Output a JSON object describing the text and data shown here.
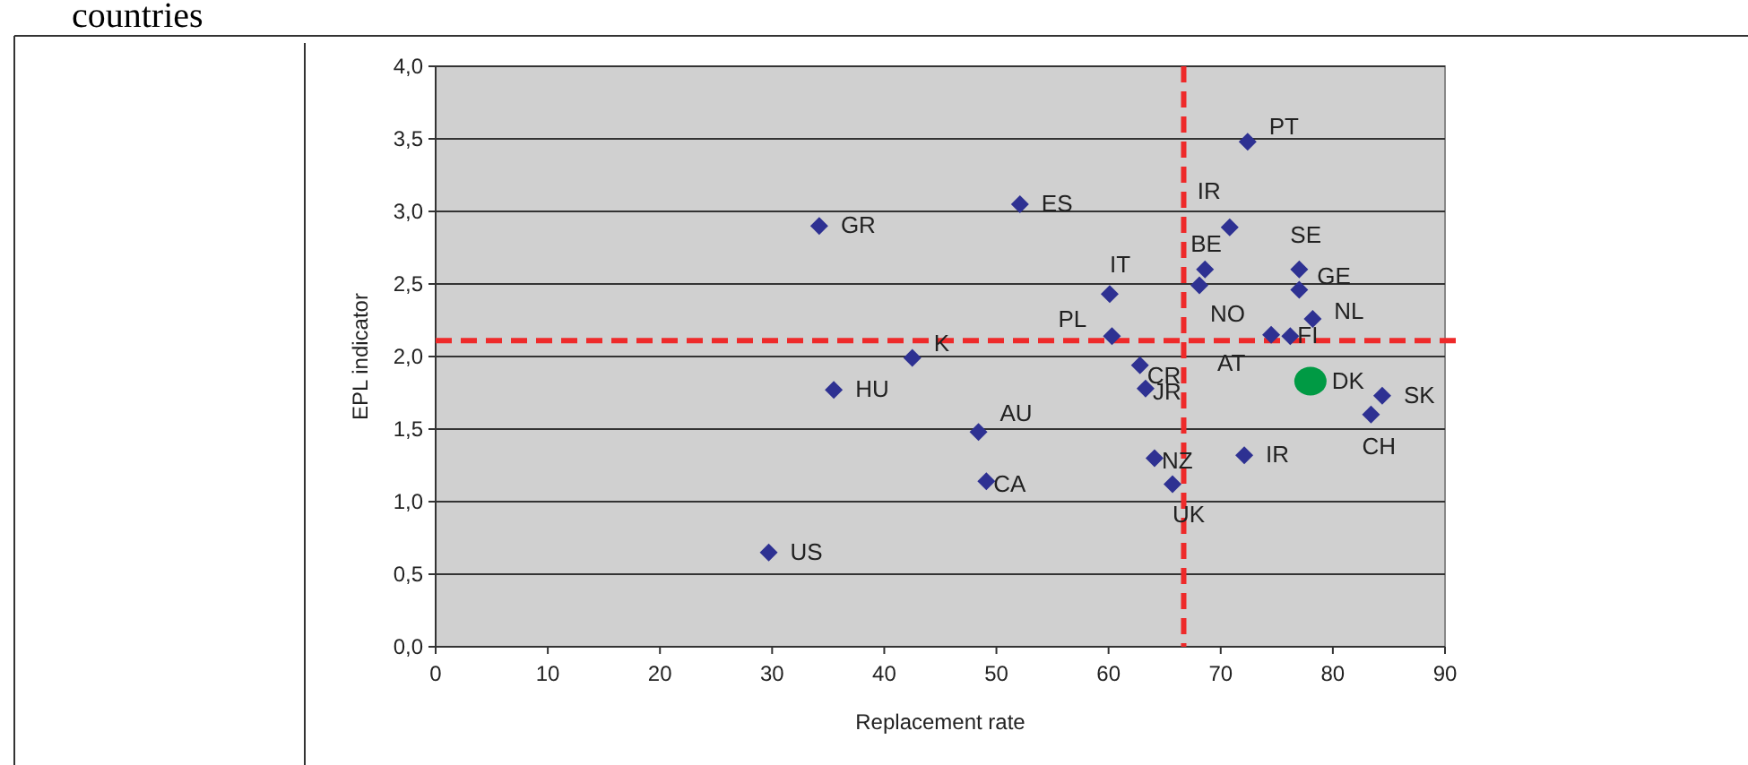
{
  "chart_data": {
    "type": "scatter",
    "title": "countries",
    "xlabel": "Replacement rate",
    "ylabel": "EPL indicator",
    "xlim": [
      0,
      90
    ],
    "xticks": [
      0,
      10,
      20,
      30,
      40,
      50,
      60,
      70,
      80,
      90
    ],
    "ylim": [
      0,
      4
    ],
    "yticks": [
      {
        "value": 0,
        "label": "0,0"
      },
      {
        "value": 0.5,
        "label": "0,5"
      },
      {
        "value": 1,
        "label": "1,0"
      },
      {
        "value": 1.5,
        "label": "1,5"
      },
      {
        "value": 2,
        "label": "2,0"
      },
      {
        "value": 2.5,
        "label": "2,5"
      },
      {
        "value": 3,
        "label": "3,0"
      },
      {
        "value": 3.5,
        "label": "3,5"
      },
      {
        "value": 4,
        "label": "4,0"
      }
    ],
    "grid": "y",
    "series": [
      {
        "color": "#2e3192",
        "marker": "diamond",
        "x": [
          29.7,
          34.2,
          35.5,
          42.5,
          48.4,
          49.1,
          52.1,
          60.1,
          60.3,
          62.8,
          63.3,
          64.1,
          65.7,
          68.1,
          68.6,
          70.8,
          72.4,
          72.1,
          74.5,
          76.2,
          77.0,
          77.0,
          78.2,
          83.4,
          84.4
        ],
        "values": [
          0.65,
          2.9,
          1.77,
          1.99,
          1.48,
          1.14,
          3.05,
          2.43,
          2.14,
          1.94,
          1.78,
          1.3,
          1.12,
          2.49,
          2.6,
          2.89,
          3.48,
          1.32,
          2.15,
          2.14,
          2.6,
          2.46,
          2.26,
          1.6,
          1.73
        ],
        "value_labels": [
          "US",
          "GR",
          "HU",
          "K",
          "AU",
          "CA",
          "ES",
          "IT",
          "PL",
          "CR",
          "JR",
          "NZ",
          "UK",
          "NO",
          "BE",
          "IR",
          "PT",
          "IR",
          "AT",
          "FI",
          "SE",
          "GE",
          "NL",
          "CH",
          "SK"
        ]
      },
      {
        "color": "#009a44",
        "marker": "circle",
        "x": [
          78.0
        ],
        "values": [
          1.83
        ],
        "value_labels": [
          "DK"
        ]
      }
    ],
    "ref_lines": [
      {
        "axis": "x",
        "value": 66.7,
        "color": "#ee2a2a",
        "line_style": "dashed"
      },
      {
        "axis": "y",
        "value": 2.11,
        "color": "#ee2a2a",
        "line_style": "dashed"
      }
    ]
  }
}
